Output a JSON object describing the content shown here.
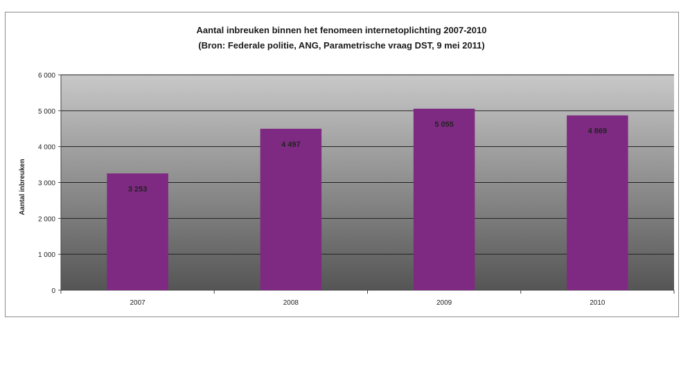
{
  "chart_data": {
    "type": "bar",
    "title": "Aantal inbreuken binnen het fenomeen internetoplichting 2007-2010",
    "subtitle": "(Bron: Federale politie, ANG, Parametrische vraag DST, 9 mei 2011)",
    "xlabel": "",
    "ylabel": "Aantal inbreuken",
    "categories": [
      "2007",
      "2008",
      "2009",
      "2010"
    ],
    "values": [
      3253,
      4497,
      5055,
      4869
    ],
    "data_labels": [
      "3 253",
      "4 497",
      "5 055",
      "4 869"
    ],
    "ylim": [
      0,
      6000
    ],
    "yticks": [
      0,
      1000,
      2000,
      3000,
      4000,
      5000,
      6000
    ],
    "ytick_labels": [
      "0",
      "1 000",
      "2 000",
      "3 000",
      "4 000",
      "5 000",
      "6 000"
    ],
    "grid": true,
    "legend": "none",
    "bar_color": "#7f2a82",
    "plot_gradient": [
      "#c8c8c8",
      "#555555"
    ]
  }
}
